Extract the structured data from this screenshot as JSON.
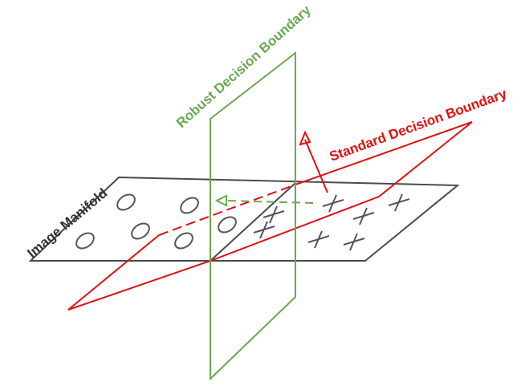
{
  "labels": {
    "robust": "Robust Decision Boundary",
    "standard": "Standard Decision Boundary",
    "manifold": "Image Manifold"
  },
  "colors": {
    "manifold": "#4a4a4a",
    "robust": "#6aa84f",
    "standard": "#e01010",
    "marker": "#555555"
  },
  "markers": {
    "circle_class": "circle",
    "cross_class": "cross"
  }
}
